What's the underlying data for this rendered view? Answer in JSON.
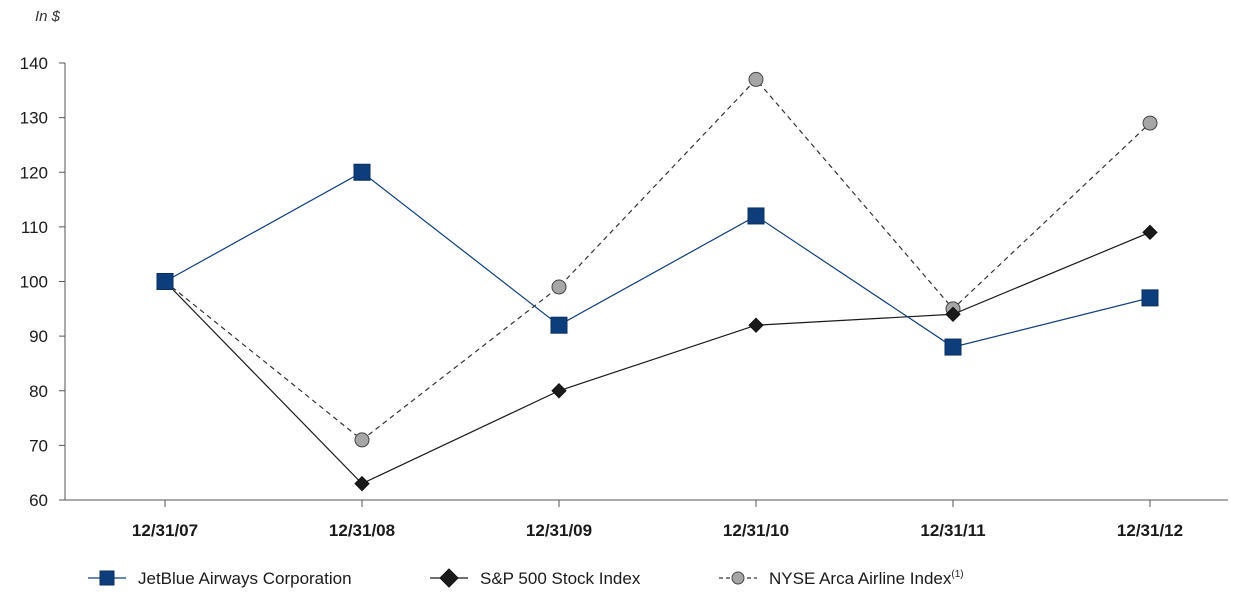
{
  "chart_data": {
    "type": "line",
    "unit_label": "In $",
    "categories": [
      "12/31/07",
      "12/31/08",
      "12/31/09",
      "12/31/10",
      "12/31/11",
      "12/31/12"
    ],
    "ylim": [
      60,
      140
    ],
    "yticks": [
      60,
      70,
      80,
      90,
      100,
      110,
      120,
      130,
      140
    ],
    "grid": false,
    "legend_position": "bottom-left",
    "series": [
      {
        "name": "JetBlue Airways Corporation",
        "values": [
          100,
          120,
          92,
          112,
          88,
          97
        ],
        "marker": "square",
        "line_style": "solid",
        "color": "#0d3d7a",
        "marker_fill": "#0d3d7a"
      },
      {
        "name": "S&P 500 Stock Index",
        "values": [
          100,
          63,
          80,
          92,
          94,
          109
        ],
        "marker": "diamond",
        "line_style": "solid",
        "color": "#1a1a1a",
        "marker_fill": "#1a1a1a"
      },
      {
        "name": "NYSE Arca Airline Index",
        "name_superscript": "(1)",
        "values": [
          100,
          71,
          99,
          137,
          95,
          129
        ],
        "marker": "circle",
        "line_style": "dashed",
        "color": "#1a1a1a",
        "marker_fill": "#a6a6a6"
      }
    ]
  }
}
